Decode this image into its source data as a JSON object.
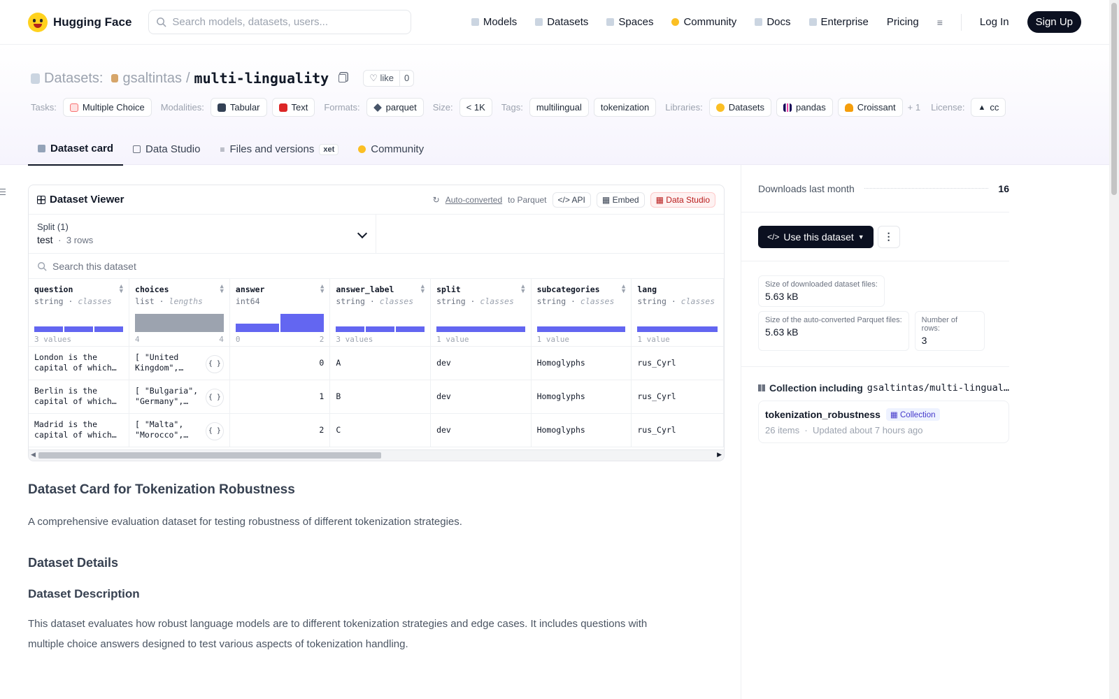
{
  "header": {
    "brand": "Hugging Face",
    "search_placeholder": "Search models, datasets, users...",
    "nav": [
      "Models",
      "Datasets",
      "Spaces",
      "Community",
      "Docs",
      "Enterprise",
      "Pricing"
    ],
    "login": "Log In",
    "signup": "Sign Up"
  },
  "repo": {
    "section": "Datasets:",
    "owner": "gsaltintas",
    "sep": "/",
    "name": "multi-linguality",
    "like_label": "like",
    "like_count": "0"
  },
  "tags": {
    "tasks_label": "Tasks:",
    "tasks": [
      "Multiple Choice"
    ],
    "modalities_label": "Modalities:",
    "modalities": [
      "Tabular",
      "Text"
    ],
    "formats_label": "Formats:",
    "formats": [
      "parquet"
    ],
    "size_label": "Size:",
    "size": "< 1K",
    "tags_label": "Tags:",
    "tags": [
      "multilingual",
      "tokenization"
    ],
    "libraries_label": "Libraries:",
    "libraries": [
      "Datasets",
      "pandas",
      "Croissant"
    ],
    "more": "+ 1",
    "license_label": "License:",
    "license": "cc"
  },
  "tabs": [
    "Dataset card",
    "Data Studio",
    "Files and versions",
    "Community"
  ],
  "xet_badge": "xet",
  "viewer": {
    "title": "Dataset Viewer",
    "auto_converted": "Auto-converted",
    "to_parquet": "to Parquet",
    "api": "API",
    "embed": "Embed",
    "data_studio": "Data Studio",
    "split_label": "Split (1)",
    "split_value": "test",
    "split_rows": "3 rows",
    "search_placeholder": "Search this dataset",
    "columns": [
      {
        "name": "question",
        "type": "string",
        "kind": "classes",
        "stat": "3 values",
        "stat_right": ""
      },
      {
        "name": "choices",
        "type": "list",
        "kind": "lengths",
        "stat": "4",
        "stat_right": "4"
      },
      {
        "name": "answer",
        "type": "int64",
        "kind": "",
        "stat": "0",
        "stat_right": "2"
      },
      {
        "name": "answer_label",
        "type": "string",
        "kind": "classes",
        "stat": "3 values",
        "stat_right": ""
      },
      {
        "name": "split",
        "type": "string",
        "kind": "classes",
        "stat": "1 value",
        "stat_right": ""
      },
      {
        "name": "subcategories",
        "type": "string",
        "kind": "classes",
        "stat": "1 value",
        "stat_right": ""
      },
      {
        "name": "lang",
        "type": "string",
        "kind": "classes",
        "stat": "1 value",
        "stat_right": ""
      }
    ],
    "rows": [
      {
        "question": "London is the capital of which…",
        "choices": "[ \"United Kingdom\",…",
        "answer": "0",
        "answer_label": "A",
        "split": "dev",
        "subcategories": "Homoglyphs",
        "lang": "rus_Cyrl"
      },
      {
        "question": "Berlin is the capital of which…",
        "choices": "[ \"Bulgaria\", \"Germany\",…",
        "answer": "1",
        "answer_label": "B",
        "split": "dev",
        "subcategories": "Homoglyphs",
        "lang": "rus_Cyrl"
      },
      {
        "question": "Madrid is the capital of which…",
        "choices": "[ \"Malta\", \"Morocco\",…",
        "answer": "2",
        "answer_label": "C",
        "split": "dev",
        "subcategories": "Homoglyphs",
        "lang": "rus_Cyrl"
      }
    ]
  },
  "card": {
    "h1": "Dataset Card for Tokenization Robustness",
    "intro": "A comprehensive evaluation dataset for testing robustness of different tokenization strategies.",
    "h_details": "Dataset Details",
    "h_description": "Dataset Description",
    "description": "This dataset evaluates how robust language models are to different tokenization strategies and edge cases. It includes questions with multiple choice answers designed to test various aspects of tokenization handling."
  },
  "sidebar": {
    "downloads_label": "Downloads last month",
    "downloads_value": "16",
    "use_button": "Use this dataset",
    "size_dl_label": "Size of downloaded dataset files:",
    "size_dl_value": "5.63 kB",
    "size_parquet_label": "Size of the auto-converted Parquet files:",
    "size_parquet_value": "5.63 kB",
    "rows_label": "Number of rows:",
    "rows_value": "3",
    "collection_heading": "Collection including",
    "collection_repo": "gsaltintas/multi-lingual…",
    "collection_name": "tokenization_robustness",
    "collection_badge": "Collection",
    "collection_items": "26 items",
    "collection_updated": "Updated about 7 hours ago"
  }
}
